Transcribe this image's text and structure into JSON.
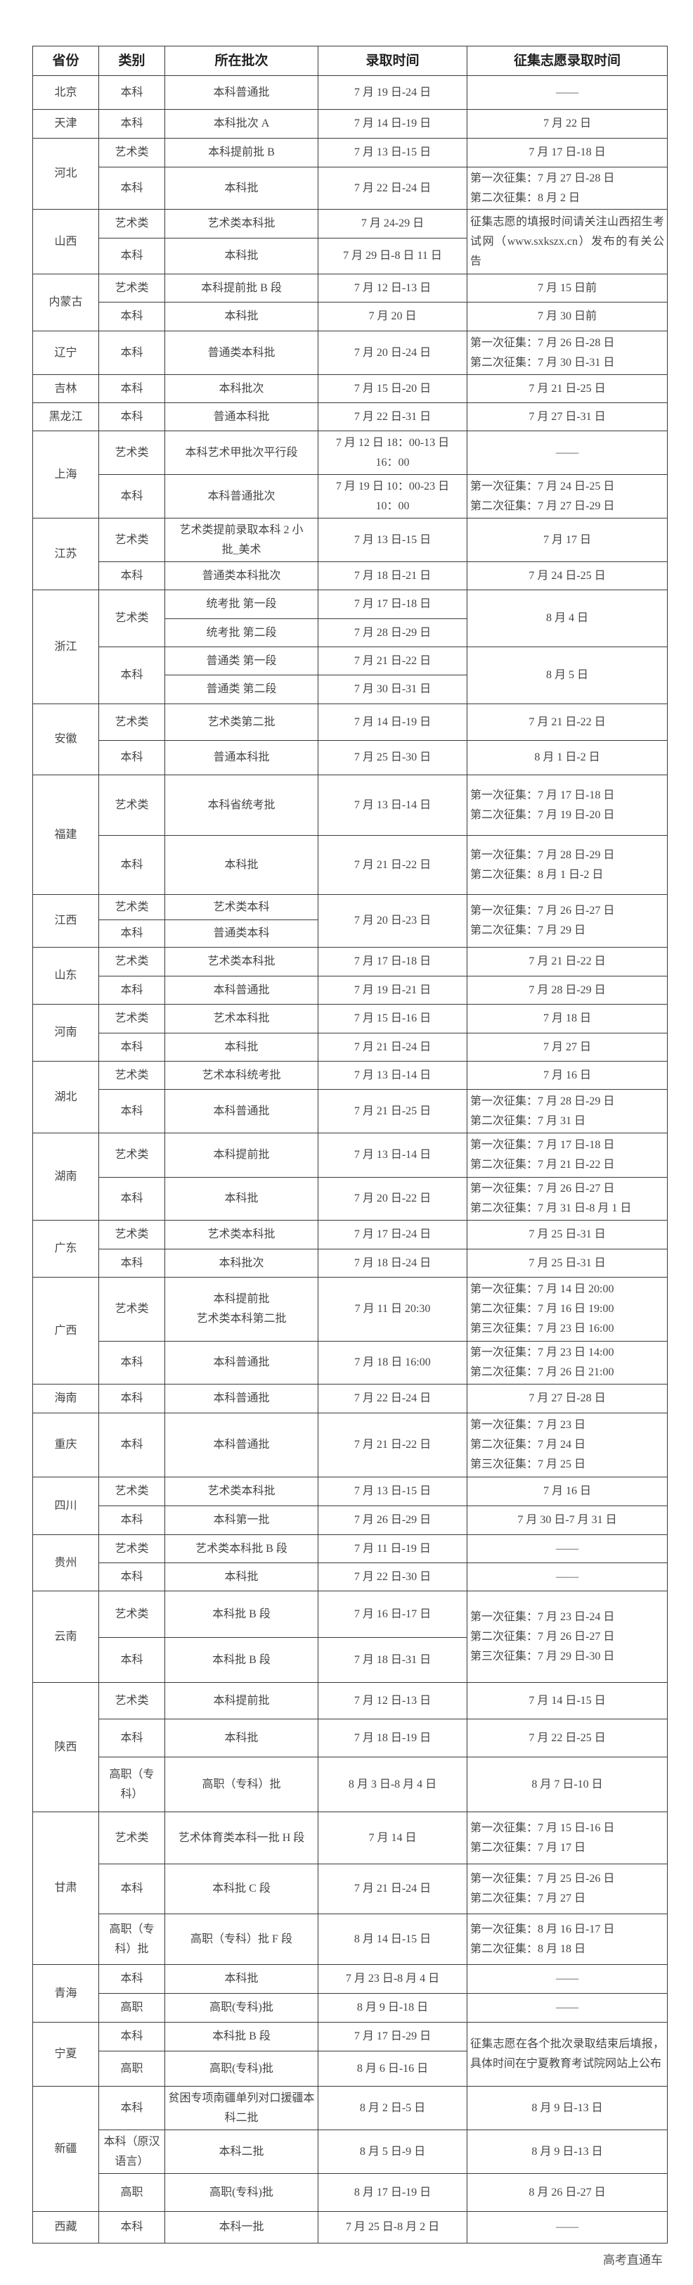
{
  "header": [
    "省份",
    "类别",
    "所在批次",
    "录取时间",
    "征集志愿录取时间"
  ],
  "provinces": [
    {
      "name": "北京",
      "rows": [
        [
          "本科",
          "本科普通批",
          "7 月 19 日-24 日",
          "——"
        ]
      ]
    },
    {
      "name": "天津",
      "rows": [
        [
          "本科",
          "本科批次 A",
          "7 月 14 日-19 日",
          "7 月 22 日"
        ]
      ]
    },
    {
      "name": "河北",
      "rows": [
        [
          "艺术类",
          "本科提前批 B",
          "7 月 13 日-15 日",
          "7 月 17 日-18 日"
        ],
        [
          "本科",
          "本科批",
          "7 月 22 日-24 日",
          "第一次征集：7 月 27 日-28 日\n第二次征集：8 月 2 日"
        ]
      ]
    },
    {
      "name": "山西",
      "rows": [
        [
          "艺术类",
          "艺术类本科批",
          "7 月 24-29 日",
          "征集志愿的填报时间请关注山西招生考试网（www.sxkszx.cn）发布的有关公告"
        ],
        [
          "本科",
          "本科批",
          "7 月 29 日-8 日 11 日",
          null
        ]
      ]
    },
    {
      "name": "内蒙古",
      "rows": [
        [
          "艺术类",
          "本科提前批 B 段",
          "7 月 12 日-13 日",
          "7 月 15 日前"
        ],
        [
          "本科",
          "本科批",
          "7 月 20 日",
          "7 月 30 日前"
        ]
      ]
    },
    {
      "name": "辽宁",
      "rows": [
        [
          "本科",
          "普通类本科批",
          "7 月 20 日-24 日",
          "第一次征集：7 月 26 日-28 日\n第二次征集：7 月 30 日-31 日"
        ]
      ]
    },
    {
      "name": "吉林",
      "rows": [
        [
          "本科",
          "本科批次",
          "7 月 15 日-20 日",
          "7 月 21 日-25 日"
        ]
      ]
    },
    {
      "name": "黑龙江",
      "rows": [
        [
          "本科",
          "普通本科批",
          "7 月 22 日-31 日",
          "7 月 27 日-31 日"
        ]
      ]
    },
    {
      "name": "上海",
      "rows": [
        [
          "艺术类",
          "本科艺术甲批次平行段",
          "7 月 12 日 18：00-13 日\n16：00",
          "——"
        ],
        [
          "本科",
          "本科普通批次",
          "7 月 19 日 10：00-23 日\n10：00",
          "第一次征集：7 月 24 日-25 日\n第二次征集：7 月 27 日-29 日"
        ]
      ]
    },
    {
      "name": "江苏",
      "rows": [
        [
          "艺术类",
          "艺术类提前录取本科 2 小\n批_美术",
          "7 月 13 日-15 日",
          "7 月 17 日"
        ],
        [
          "本科",
          "普通类本科批次",
          "7 月 18 日-21 日",
          "7 月 24 日-25 日"
        ]
      ]
    },
    {
      "name": "浙江",
      "rows": [
        [
          "艺术类",
          "统考批 第一段",
          "7 月 17 日-18 日",
          "8 月 4 日"
        ],
        [
          null,
          "统考批 第二段",
          "7 月 28 日-29 日",
          null
        ],
        [
          "本科",
          "普通类 第一段",
          "7 月 21 日-22 日",
          "8 月 5 日"
        ],
        [
          null,
          "普通类 第二段",
          "7 月 30 日-31 日",
          null
        ]
      ]
    },
    {
      "name": "安徽",
      "rows": [
        [
          "艺术类",
          "艺术类第二批",
          "7 月 14 日-19 日",
          "7 月 21 日-22 日"
        ],
        [
          "本科",
          "普通本科批",
          "7 月 25 日-30 日",
          "8 月 1 日-2 日"
        ]
      ]
    },
    {
      "name": "福建",
      "rows": [
        [
          "艺术类",
          "本科省统考批",
          "7 月 13 日-14 日",
          "第一次征集：7 月 17 日-18 日\n第二次征集：7 月 19 日-20 日"
        ],
        [
          "本科",
          "本科批",
          "7 月 21 日-22 日",
          "第一次征集：7 月 28 日-29 日\n第二次征集：8 月 1 日-2 日"
        ]
      ]
    },
    {
      "name": "江西",
      "rows": [
        [
          "艺术类",
          "艺术类本科",
          "7 月 20 日-23 日",
          "第一次征集：7 月 26 日-27 日\n第二次征集：7 月 29 日"
        ],
        [
          "本科",
          "普通类本科",
          null,
          null
        ]
      ]
    },
    {
      "name": "山东",
      "rows": [
        [
          "艺术类",
          "艺术类本科批",
          "7 月 17 日-18 日",
          "7 月 21 日-22 日"
        ],
        [
          "本科",
          "本科普通批",
          "7 月 19 日-21 日",
          "7 月 28 日-29 日"
        ]
      ]
    },
    {
      "name": "河南",
      "rows": [
        [
          "艺术类",
          "艺术本科批",
          "7 月 15 日-16 日",
          "7 月 18 日"
        ],
        [
          "本科",
          "本科批",
          "7 月 21 日-24 日",
          "7 月 27 日"
        ]
      ]
    },
    {
      "name": "湖北",
      "rows": [
        [
          "艺术类",
          "艺术本科统考批",
          "7 月 13 日-14 日",
          "7 月 16 日"
        ],
        [
          "本科",
          "本科普通批",
          "7 月 21 日-25 日",
          "第一次征集：7 月 28 日-29 日\n第二次征集：7 月 31 日"
        ]
      ]
    },
    {
      "name": "湖南",
      "rows": [
        [
          "艺术类",
          "本科提前批",
          "7 月 13 日-14 日",
          "第一次征集：7 月 17 日-18 日\n第二次征集：7 月 21 日-22 日"
        ],
        [
          "本科",
          "本科批",
          "7 月 20 日-22 日",
          "第一次征集：7 月 26 日-27 日\n第二次征集：7 月 31 日-8 月 1 日"
        ]
      ]
    },
    {
      "name": "广东",
      "rows": [
        [
          "艺术类",
          "艺术类本科批",
          "7 月 17 日-24 日",
          "7 月 25 日-31 日"
        ],
        [
          "本科",
          "本科批次",
          "7 月 18 日-24 日",
          "7 月 25 日-31 日"
        ]
      ]
    },
    {
      "name": "广西",
      "rows": [
        [
          "艺术类",
          "本科提前批\n艺术类本科第二批",
          "7 月 11 日 20:30",
          "第一次征集：7 月 14 日 20:00\n第二次征集：7 月 16 日 19:00\n第三次征集：7 月 23 日 16:00"
        ],
        [
          "本科",
          "本科普通批",
          "7 月 18 日 16:00",
          "第一次征集：7 月 23 日 14:00\n第二次征集：7 月 26 日 21:00"
        ]
      ]
    },
    {
      "name": "海南",
      "rows": [
        [
          "本科",
          "本科普通批",
          "7 月 22 日-24 日",
          "7 月 27 日-28 日"
        ]
      ]
    },
    {
      "name": "重庆",
      "rows": [
        [
          "本科",
          "本科普通批",
          "7 月 21 日-22 日",
          "第一次征集：7 月 23 日\n第二次征集：7 月 24 日\n第三次征集：7 月 25 日"
        ]
      ]
    },
    {
      "name": "四川",
      "rows": [
        [
          "艺术类",
          "艺术类本科批",
          "7 月 13 日-15 日",
          "7 月 16 日"
        ],
        [
          "本科",
          "本科第一批",
          "7 月 26 日-29 日",
          "7 月 30 日-7 月 31 日"
        ]
      ]
    },
    {
      "name": "贵州",
      "rows": [
        [
          "艺术类",
          "艺术类本科批 B 段",
          "7 月 11 日-19 日",
          "——"
        ],
        [
          "本科",
          "本科批",
          "7 月 22 日-30 日",
          "——"
        ]
      ]
    },
    {
      "name": "云南",
      "rows": [
        [
          "艺术类",
          "本科批 B 段",
          "7 月 16 日-17 日",
          "第一次征集：7 月 23 日-24 日\n第二次征集：7 月 26 日-27 日\n第三次征集：7 月 29 日-30 日"
        ],
        [
          "本科",
          "本科批 B 段",
          "7 月 18 日-31 日",
          null
        ]
      ]
    },
    {
      "name": "陕西",
      "rows": [
        [
          "艺术类",
          "本科提前批",
          "7 月 12 日-13 日",
          "7 月 14 日-15 日"
        ],
        [
          "本科",
          "本科批",
          "7 月 18 日-19 日",
          "7 月 22 日-25 日"
        ],
        [
          "高职（专科）",
          "高职（专科）批",
          "8 月 3 日-8 月 4 日",
          "8 月 7 日-10 日"
        ]
      ]
    },
    {
      "name": "甘肃",
      "rows": [
        [
          "艺术类",
          "艺术体育类本科一批 H 段",
          "7 月 14 日",
          "第一次征集：7 月 15 日-16 日\n第二次征集：7 月 17 日"
        ],
        [
          "本科",
          "本科批 C 段",
          "7 月 21 日-24 日",
          "第一次征集：7 月 25 日-26 日\n第二次征集：7 月 27 日"
        ],
        [
          "高职（专科）批",
          "高职（专科）批 F 段",
          "8 月 14 日-15 日",
          "第一次征集：8 月 16 日-17 日\n第二次征集：8 月 18 日"
        ]
      ]
    },
    {
      "name": "青海",
      "rows": [
        [
          "本科",
          "本科批",
          "7 月 23 日-8 月 4 日",
          "——"
        ],
        [
          "高职",
          "高职(专科)批",
          "8 月 9 日-18 日",
          "——"
        ]
      ]
    },
    {
      "name": "宁夏",
      "rows": [
        [
          "本科",
          "本科批 B 段",
          "7 月 17 日-29 日",
          "征集志愿在各个批次录取结束后填报，具体时间在宁夏教育考试院网站上公布"
        ],
        [
          "高职",
          "高职(专科)批",
          "8 月 6 日-16 日",
          null
        ]
      ]
    },
    {
      "name": "新疆",
      "rows": [
        [
          "本科",
          "贫困专项南疆单列对口援疆本科二批",
          "8 月 2 日-5 日",
          "8 月 9 日-13 日"
        ],
        [
          "本科（原汉语言）",
          "本科二批",
          "8 月 5 日-9 日",
          "8 月 9 日-13 日"
        ],
        [
          "高职",
          "高职(专科)批",
          "8 月 17 日-19 日",
          "8 月 26 日-27 日"
        ]
      ]
    },
    {
      "name": "西藏",
      "rows": [
        [
          "本科",
          "本科一批",
          "7 月 25 日-8 月 2 日",
          "——"
        ]
      ]
    }
  ],
  "watermark": "高考直通车"
}
